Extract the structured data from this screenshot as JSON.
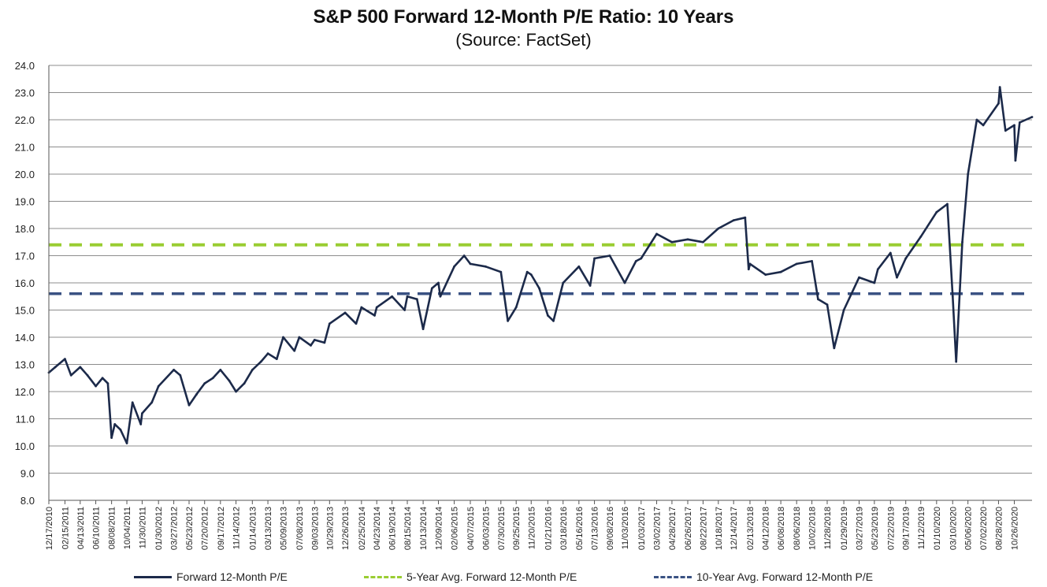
{
  "title": "S&P 500 Forward 12-Month P/E Ratio: 10 Years",
  "subtitle": "(Source: FactSet)",
  "colors": {
    "pe_line": "#1c2a4a",
    "avg5": "#9acd32",
    "avg10": "#3a5283",
    "grid": "#8c8c8c"
  },
  "chart_data": {
    "type": "line",
    "title": "S&P 500 Forward 12-Month P/E Ratio: 10 Years",
    "subtitle": "(Source: FactSet)",
    "ylim": [
      8.0,
      24.0
    ],
    "y_ticks": [
      "24.0",
      "23.0",
      "22.0",
      "21.0",
      "20.0",
      "19.0",
      "18.0",
      "17.0",
      "16.0",
      "15.0",
      "14.0",
      "13.0",
      "12.0",
      "11.0",
      "10.0",
      "9.0",
      "8.0"
    ],
    "x_ticks": [
      "12/17/2010",
      "02/15/2011",
      "04/13/2011",
      "06/10/2011",
      "08/08/2011",
      "10/04/2011",
      "11/30/2011",
      "01/30/2012",
      "03/27/2012",
      "05/23/2012",
      "07/20/2012",
      "09/17/2012",
      "11/14/2012",
      "01/14/2013",
      "03/13/2013",
      "05/09/2013",
      "07/08/2013",
      "09/03/2013",
      "10/29/2013",
      "12/26/2013",
      "02/25/2014",
      "04/23/2014",
      "06/19/2014",
      "08/15/2014",
      "10/13/2014",
      "12/09/2014",
      "02/06/2015",
      "04/07/2015",
      "06/03/2015",
      "07/30/2015",
      "09/25/2015",
      "11/20/2015",
      "01/21/2016",
      "03/18/2016",
      "05/16/2016",
      "07/13/2016",
      "09/08/2016",
      "11/03/2016",
      "01/03/2017",
      "03/02/2017",
      "04/28/2017",
      "06/26/2017",
      "08/22/2017",
      "10/18/2017",
      "12/14/2017",
      "02/13/2018",
      "04/12/2018",
      "06/08/2018",
      "08/06/2018",
      "10/02/2018",
      "11/28/2018",
      "01/29/2019",
      "03/27/2019",
      "05/23/2019",
      "07/22/2019",
      "09/17/2019",
      "11/12/2019",
      "01/10/2020",
      "03/10/2020",
      "05/06/2020",
      "07/02/2020",
      "08/28/2020",
      "10/26/2020"
    ],
    "grid": true,
    "legend_position": "bottom",
    "series": [
      {
        "name": "Forward 12-Month P/E",
        "style": "solid",
        "points": [
          [
            "12/17/2010",
            12.7
          ],
          [
            "01/10/2011",
            12.9
          ],
          [
            "02/15/2011",
            13.2
          ],
          [
            "03/10/2011",
            12.6
          ],
          [
            "04/13/2011",
            12.9
          ],
          [
            "05/10/2011",
            12.6
          ],
          [
            "06/10/2011",
            12.2
          ],
          [
            "07/05/2011",
            12.5
          ],
          [
            "07/25/2011",
            12.3
          ],
          [
            "08/08/2011",
            10.3
          ],
          [
            "08/20/2011",
            10.8
          ],
          [
            "09/10/2011",
            10.6
          ],
          [
            "10/04/2011",
            10.1
          ],
          [
            "10/25/2011",
            11.6
          ],
          [
            "11/25/2011",
            10.8
          ],
          [
            "11/30/2011",
            11.2
          ],
          [
            "01/05/2012",
            11.6
          ],
          [
            "01/30/2012",
            12.2
          ],
          [
            "03/27/2012",
            12.8
          ],
          [
            "04/20/2012",
            12.6
          ],
          [
            "05/23/2012",
            11.5
          ],
          [
            "06/20/2012",
            11.9
          ],
          [
            "07/20/2012",
            12.3
          ],
          [
            "08/20/2012",
            12.5
          ],
          [
            "09/17/2012",
            12.8
          ],
          [
            "10/20/2012",
            12.4
          ],
          [
            "11/14/2012",
            12.0
          ],
          [
            "12/15/2012",
            12.3
          ],
          [
            "01/14/2013",
            12.8
          ],
          [
            "02/15/2013",
            13.1
          ],
          [
            "03/13/2013",
            13.4
          ],
          [
            "04/15/2013",
            13.2
          ],
          [
            "05/09/2013",
            14.0
          ],
          [
            "06/20/2013",
            13.5
          ],
          [
            "07/08/2013",
            14.0
          ],
          [
            "08/20/2013",
            13.7
          ],
          [
            "09/03/2013",
            13.9
          ],
          [
            "10/10/2013",
            13.8
          ],
          [
            "10/29/2013",
            14.5
          ],
          [
            "12/26/2013",
            14.9
          ],
          [
            "02/05/2014",
            14.5
          ],
          [
            "02/25/2014",
            15.1
          ],
          [
            "04/15/2014",
            14.8
          ],
          [
            "04/23/2014",
            15.1
          ],
          [
            "06/19/2014",
            15.5
          ],
          [
            "08/05/2014",
            15.0
          ],
          [
            "08/15/2014",
            15.5
          ],
          [
            "09/20/2014",
            15.4
          ],
          [
            "10/13/2014",
            14.3
          ],
          [
            "11/15/2014",
            15.8
          ],
          [
            "12/09/2014",
            16.0
          ],
          [
            "12/16/2014",
            15.5
          ],
          [
            "02/06/2015",
            16.6
          ],
          [
            "03/15/2015",
            17.0
          ],
          [
            "04/07/2015",
            16.7
          ],
          [
            "06/03/2015",
            16.6
          ],
          [
            "07/30/2015",
            16.4
          ],
          [
            "08/25/2015",
            14.6
          ],
          [
            "09/25/2015",
            15.1
          ],
          [
            "11/05/2015",
            16.4
          ],
          [
            "11/20/2015",
            16.3
          ],
          [
            "12/20/2015",
            15.8
          ],
          [
            "01/21/2016",
            14.8
          ],
          [
            "02/11/2016",
            14.6
          ],
          [
            "03/18/2016",
            16.0
          ],
          [
            "05/16/2016",
            16.6
          ],
          [
            "06/27/2016",
            15.9
          ],
          [
            "07/13/2016",
            16.9
          ],
          [
            "09/08/2016",
            17.0
          ],
          [
            "11/03/2016",
            16.0
          ],
          [
            "12/15/2016",
            16.8
          ],
          [
            "01/03/2017",
            16.9
          ],
          [
            "03/02/2017",
            17.8
          ],
          [
            "04/28/2017",
            17.5
          ],
          [
            "06/26/2017",
            17.6
          ],
          [
            "08/22/2017",
            17.5
          ],
          [
            "10/18/2017",
            18.0
          ],
          [
            "12/14/2017",
            18.3
          ],
          [
            "01/26/2018",
            18.4
          ],
          [
            "02/08/2018",
            16.5
          ],
          [
            "02/13/2018",
            16.7
          ],
          [
            "04/12/2018",
            16.3
          ],
          [
            "06/08/2018",
            16.4
          ],
          [
            "08/06/2018",
            16.7
          ],
          [
            "10/02/2018",
            16.8
          ],
          [
            "10/25/2018",
            15.4
          ],
          [
            "11/28/2018",
            15.2
          ],
          [
            "12/24/2018",
            13.6
          ],
          [
            "01/29/2019",
            15.0
          ],
          [
            "03/27/2019",
            16.2
          ],
          [
            "05/23/2019",
            16.0
          ],
          [
            "06/05/2019",
            16.5
          ],
          [
            "07/22/2019",
            17.1
          ],
          [
            "08/15/2019",
            16.2
          ],
          [
            "09/17/2019",
            16.9
          ],
          [
            "11/12/2019",
            17.7
          ],
          [
            "01/10/2020",
            18.6
          ],
          [
            "02/19/2020",
            18.9
          ],
          [
            "03/10/2020",
            15.5
          ],
          [
            "03/23/2020",
            13.1
          ],
          [
            "04/15/2020",
            17.5
          ],
          [
            "05/06/2020",
            20.0
          ],
          [
            "06/08/2020",
            22.0
          ],
          [
            "07/02/2020",
            21.8
          ],
          [
            "08/28/2020",
            22.6
          ],
          [
            "09/02/2020",
            23.2
          ],
          [
            "09/23/2020",
            21.6
          ],
          [
            "10/26/2020",
            21.8
          ],
          [
            "10/30/2020",
            20.5
          ],
          [
            "11/15/2020",
            21.9
          ],
          [
            "12/31/2020",
            22.1
          ]
        ]
      },
      {
        "name": "5-Year Avg. Forward 12-Month P/E",
        "style": "dashed",
        "value": 17.4
      },
      {
        "name": "10-Year Avg. Forward 12-Month P/E",
        "style": "dashed",
        "value": 15.6
      }
    ]
  },
  "legend": {
    "pe": "Forward 12-Month P/E",
    "avg5": "5-Year Avg. Forward 12-Month P/E",
    "avg10": "10-Year Avg. Forward 12-Month P/E"
  }
}
